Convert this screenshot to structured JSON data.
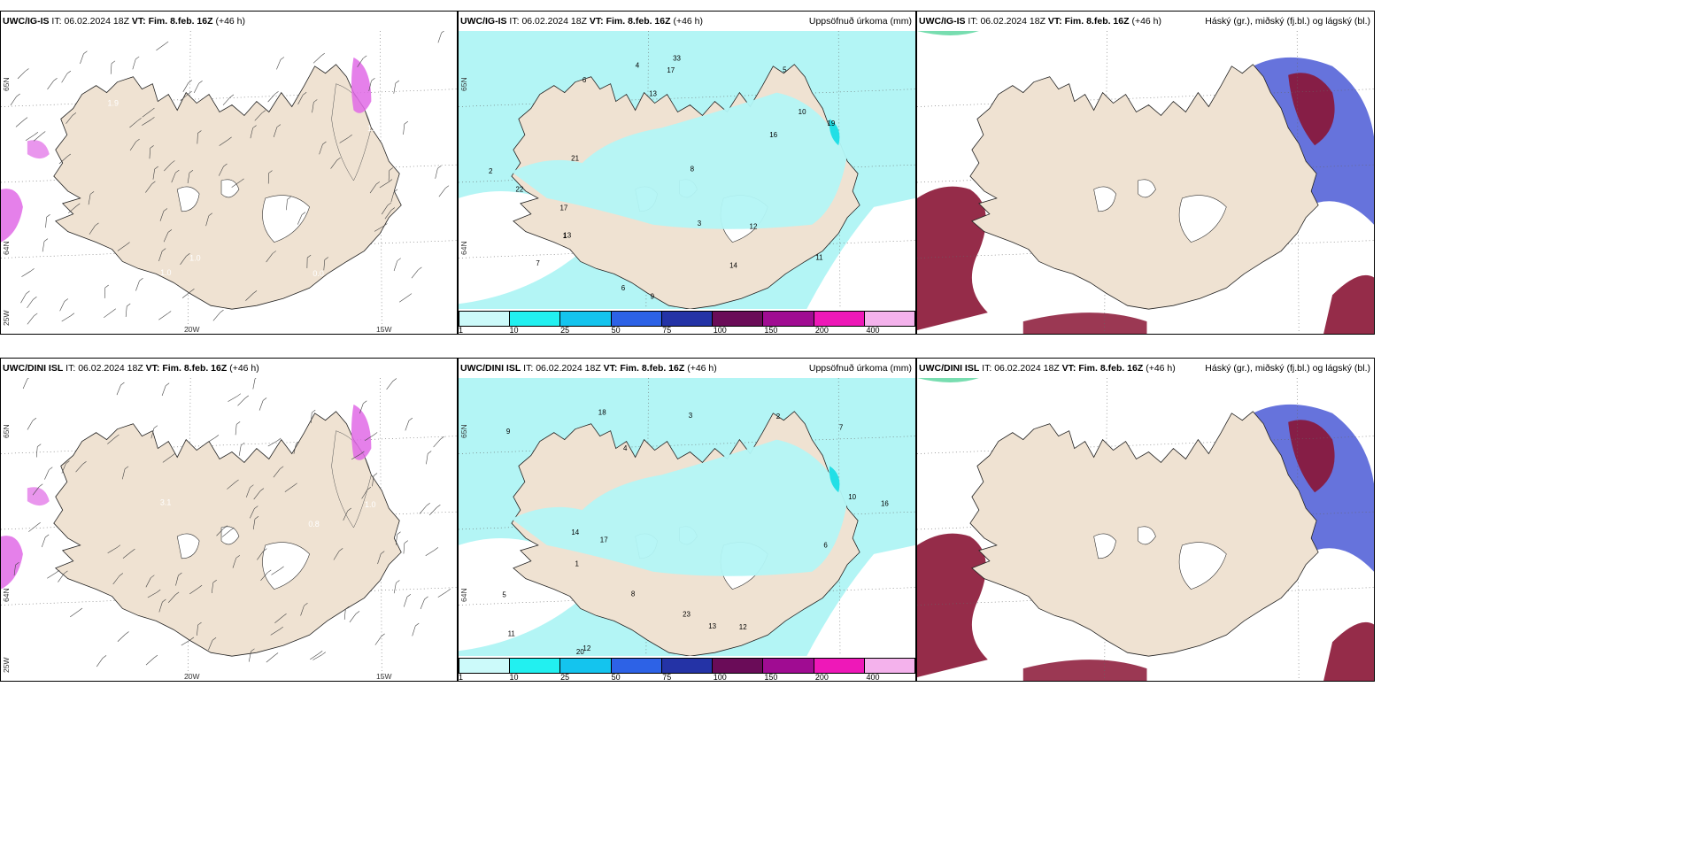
{
  "colors": {
    "land": "#efe2d2",
    "precip_bg": "#b3f5f5",
    "precip_strong": "#22dfe6",
    "snow_pink": "#e06ae6",
    "cloud_dark": "#8a1535",
    "cloud_blue": "#4b5bd6"
  },
  "colorbar": {
    "colors": [
      "#ccfafa",
      "#22f0f0",
      "#14c4ee",
      "#2d62e6",
      "#2433a6",
      "#6a0c58",
      "#a00c92",
      "#ee18b8",
      "#f4b2ec"
    ],
    "labels": [
      "1",
      "10",
      "25",
      "50",
      "75",
      "100",
      "150",
      "200",
      "400"
    ]
  },
  "panels": [
    {
      "id": "ig-wind",
      "model": "UWC/IG-IS",
      "it_label": "IT:",
      "it_value": "06.02.2024 18Z",
      "vt_label": "VT:",
      "vt_value": "Fim. 8.feb. 16Z",
      "lead": "(+46 h)",
      "right_title": "",
      "lon_labels": [
        "20W",
        "15W"
      ],
      "lat_labels": [
        "65N",
        "64N",
        "25W"
      ],
      "values": [
        "1.0",
        "0.0",
        "1.0",
        "0.0",
        "1.4",
        "1.9"
      ]
    },
    {
      "id": "ig-precip",
      "model": "UWC/IG-IS",
      "it_label": "IT:",
      "it_value": "06.02.2024 18Z",
      "vt_label": "VT:",
      "vt_value": "Fim. 8.feb. 16Z",
      "lead": "(+46 h)",
      "right_title": "Uppsöfnuð úrkoma (mm)",
      "lon_labels": [],
      "lat_labels": [
        "65N",
        "64N"
      ],
      "values": [
        "7",
        "5",
        "6",
        "10",
        "3",
        "21",
        "17",
        "13",
        "19",
        "16",
        "22",
        "33",
        "12",
        "8",
        "9",
        "4",
        "11",
        "2",
        "1",
        "6",
        "14",
        "17",
        "13"
      ]
    },
    {
      "id": "ig-cloud",
      "model": "UWC/IG-IS",
      "it_label": "IT:",
      "it_value": "06.02.2024 18Z",
      "vt_label": "VT:",
      "vt_value": "Fim. 8.feb. 16Z",
      "lead": "(+46 h)",
      "right_title": "Háský (gr.), miðský (fj.bl.) og lágský (bl.)",
      "lon_labels": [],
      "lat_labels": [],
      "values": []
    },
    {
      "id": "dini-wind",
      "model": "UWC/DINI ISL",
      "it_label": "IT:",
      "it_value": "06.02.2024 18Z",
      "vt_label": "VT:",
      "vt_value": "Fim. 8.feb. 16Z",
      "lead": "(+46 h)",
      "right_title": "",
      "lon_labels": [
        "20W",
        "15W"
      ],
      "lat_labels": [
        "65N",
        "64N",
        "25W"
      ],
      "values": [
        "3.1",
        "1.0",
        "0.8",
        "0.3",
        "1.0"
      ]
    },
    {
      "id": "dini-precip",
      "model": "UWC/DINI ISL",
      "it_label": "IT:",
      "it_value": "06.02.2024 18Z",
      "vt_label": "VT:",
      "vt_value": "Fim. 8.feb. 16Z",
      "lead": "(+46 h)",
      "right_title": "Uppsöfnuð úrkoma (mm)",
      "lon_labels": [],
      "lat_labels": [
        "65N",
        "64N"
      ],
      "values": [
        "6",
        "2",
        "12",
        "16",
        "20",
        "23",
        "13",
        "18",
        "11",
        "10",
        "14",
        "17",
        "4",
        "8",
        "3",
        "1",
        "9",
        "5",
        "7",
        "12"
      ]
    },
    {
      "id": "dini-cloud",
      "model": "UWC/DINI ISL",
      "it_label": "IT:",
      "it_value": "06.02.2024 18Z",
      "vt_label": "VT:",
      "vt_value": "Fim. 8.feb. 16Z",
      "lead": "(+46 h)",
      "right_title": "Háský (gr.), miðský (fj.bl.) og lágský (bl.)",
      "lon_labels": [],
      "lat_labels": [],
      "values": []
    }
  ]
}
